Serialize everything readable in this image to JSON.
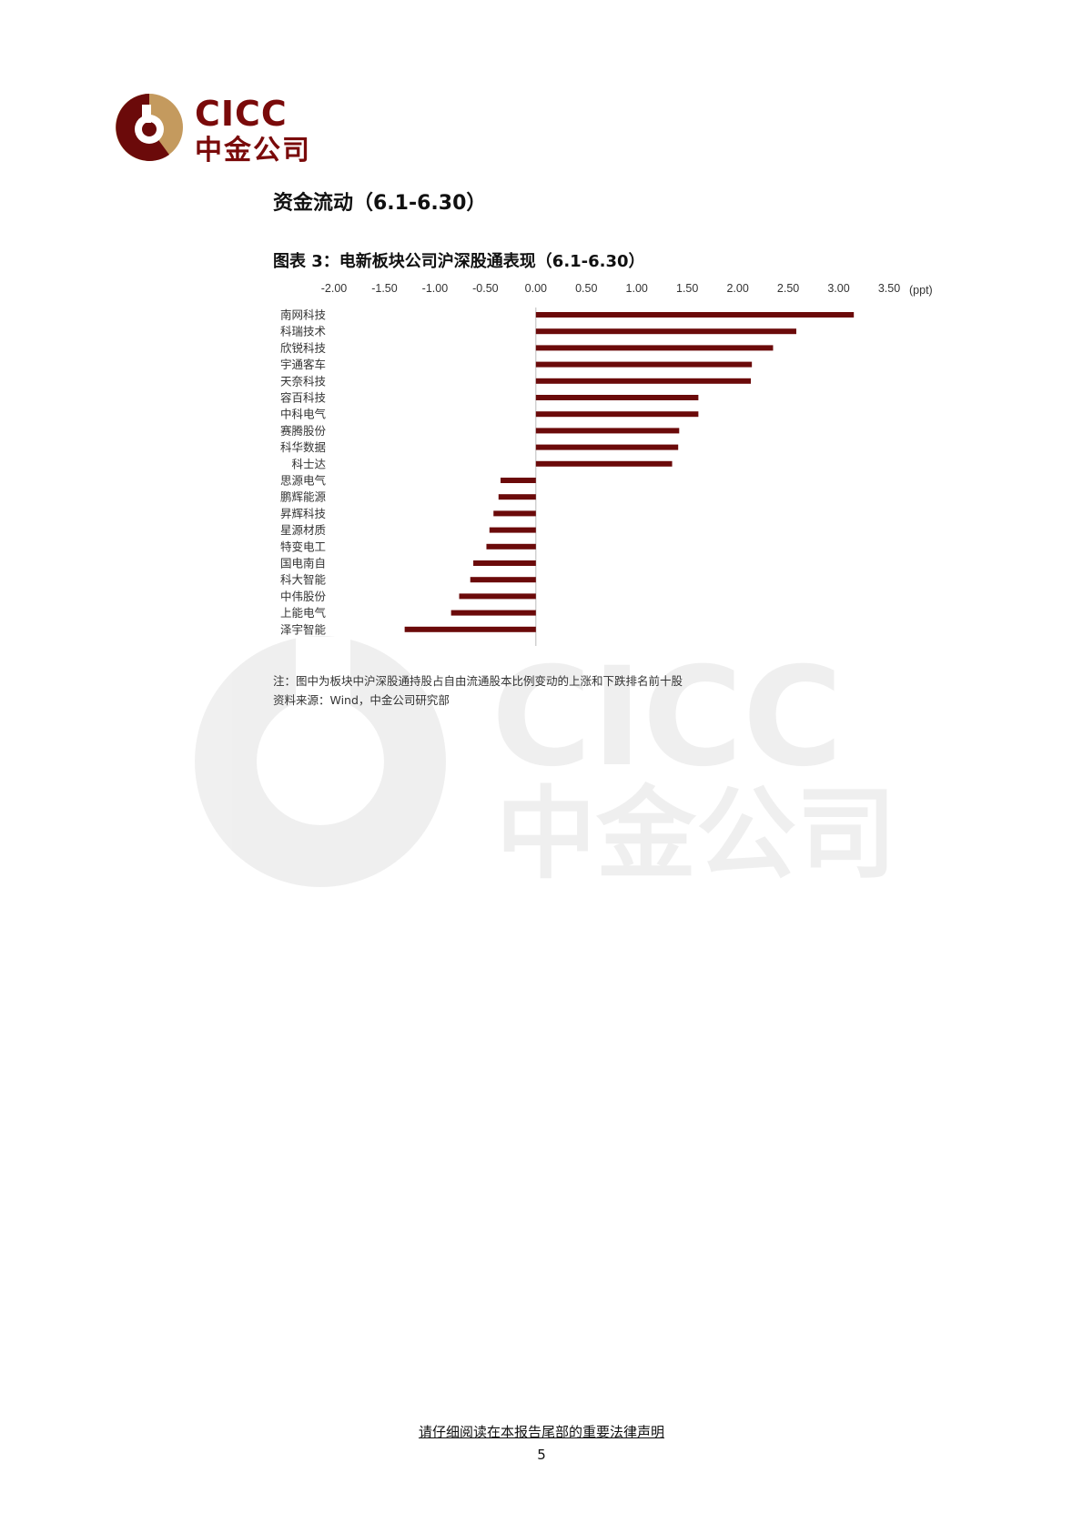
{
  "brand": {
    "name_en": "CICC",
    "name_cn": "中金公司",
    "color_dark": "#6b0a0a",
    "color_gold": "#c49a5e"
  },
  "section_title": "资金流动（6.1-6.30）",
  "figure_title": "图表 3：电新板块公司沪深股通表现（6.1-6.30）",
  "notes": {
    "note": "注：图中为板块中沪深股通持股占自由流通股本比例变动的上涨和下跌排名前十股",
    "source": "资料来源：Wind，中金公司研究部"
  },
  "footer": {
    "disclaimer": "请仔细阅读在本报告尾部的重要法律声明",
    "page_number": "5"
  },
  "chart_data": {
    "type": "bar",
    "orientation": "horizontal",
    "unit": "(ppt)",
    "xlim": [
      -2.0,
      3.5
    ],
    "ticks": [
      "-2.00",
      "-1.50",
      "-1.00",
      "-0.50",
      "0.00",
      "0.50",
      "1.00",
      "1.50",
      "2.00",
      "2.50",
      "3.00",
      "3.50"
    ],
    "tick_values": [
      -2.0,
      -1.5,
      -1.0,
      -0.5,
      0.0,
      0.5,
      1.0,
      1.5,
      2.0,
      2.5,
      3.0,
      3.5
    ],
    "bar_color": "#6b0a0a",
    "categories": [
      "南网科技",
      "科瑞技术",
      "欣锐科技",
      "宇通客车",
      "天奈科技",
      "容百科技",
      "中科电气",
      "赛腾股份",
      "科华数据",
      "科士达",
      "思源电气",
      "鹏辉能源",
      "昇辉科技",
      "星源材质",
      "特变电工",
      "国电南自",
      "科大智能",
      "中伟股份",
      "上能电气",
      "泽宇智能"
    ],
    "values": [
      3.15,
      2.58,
      2.35,
      2.14,
      2.13,
      1.61,
      1.61,
      1.42,
      1.41,
      1.35,
      -0.35,
      -0.37,
      -0.42,
      -0.46,
      -0.49,
      -0.62,
      -0.65,
      -0.76,
      -0.84,
      -1.3
    ]
  }
}
